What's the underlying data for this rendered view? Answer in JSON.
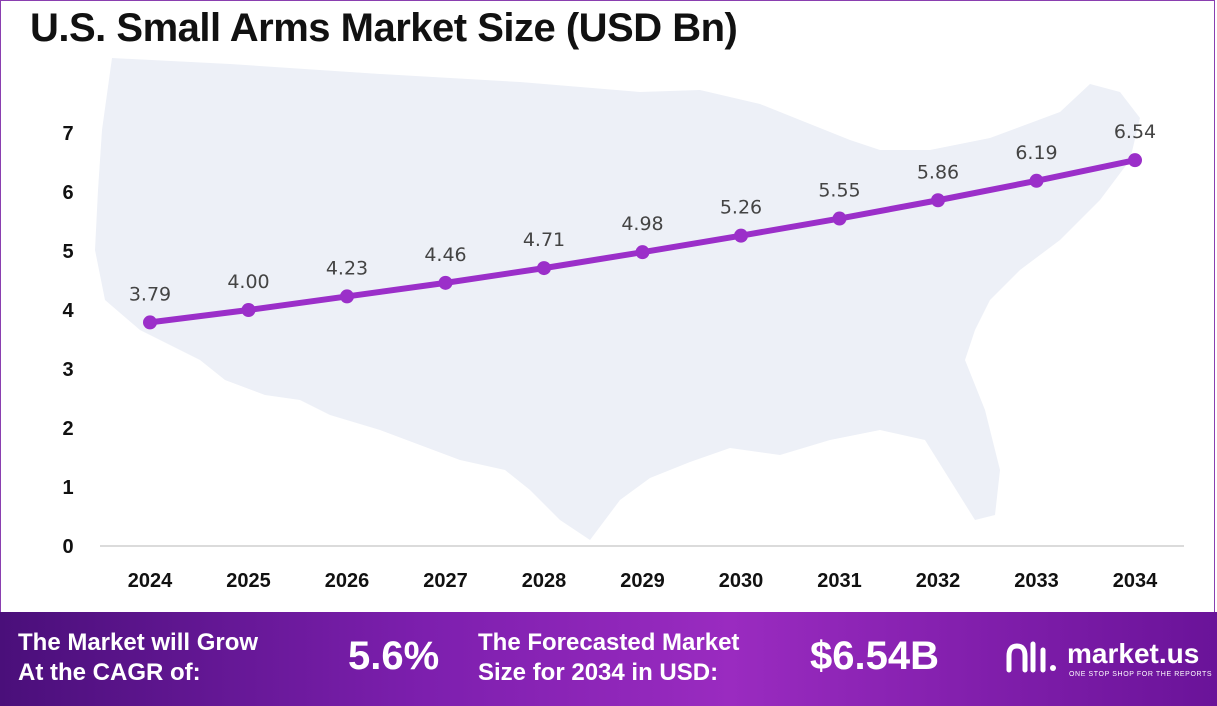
{
  "title": "U.S. Small Arms Market Size (USD Bn)",
  "chart_data": {
    "type": "line",
    "title": "U.S. Small Arms Market Size (USD Bn)",
    "categories": [
      "2024",
      "2025",
      "2026",
      "2027",
      "2028",
      "2029",
      "2030",
      "2031",
      "2032",
      "2033",
      "2034"
    ],
    "values": [
      3.79,
      4.0,
      4.23,
      4.46,
      4.71,
      4.98,
      5.26,
      5.55,
      5.86,
      6.19,
      6.54
    ],
    "data_labels": [
      "3.79",
      "4.00",
      "4.23",
      "4.46",
      "4.71",
      "4.98",
      "5.26",
      "5.55",
      "5.86",
      "6.19",
      "6.54"
    ],
    "yticks": [
      "0",
      "1",
      "2",
      "3",
      "4",
      "5",
      "6",
      "7"
    ],
    "ylim": [
      0,
      7
    ],
    "xlabel": "",
    "ylabel": "",
    "grid": false,
    "series_color": "#9b2fc9"
  },
  "footer": {
    "cagr_label": "The Market will Grow\nAt the CAGR of:",
    "cagr_value": "5.6%",
    "forecast_label": "The Forecasted Market\nSize for 2034 in USD:",
    "forecast_value": "$6.54B",
    "logo_name": "market.us",
    "logo_tagline": "ONE STOP SHOP FOR THE REPORTS"
  }
}
